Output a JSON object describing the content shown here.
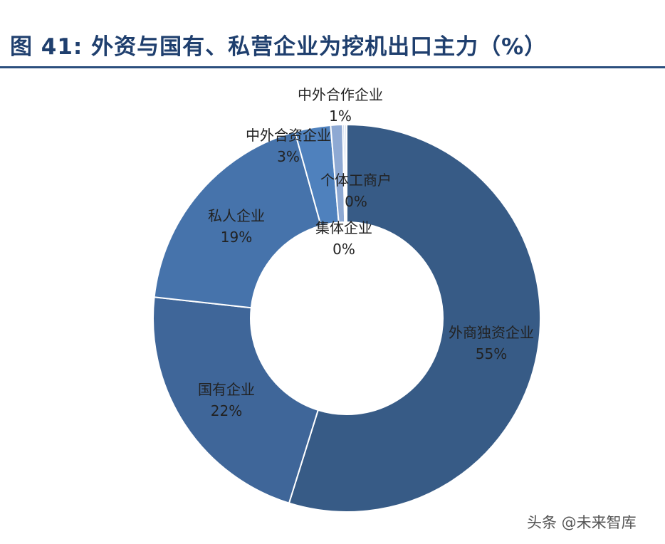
{
  "title": "图 41: 外资与国有、私营企业为挖机出口主力（%）",
  "watermark": "头条 @未来智库",
  "chart_data": {
    "type": "pie",
    "donut": true,
    "title": "图 41: 外资与国有、私营企业为挖机出口主力（%）",
    "unit": "%",
    "slices": [
      {
        "name": "外商独资企业",
        "value": 55,
        "label": "55%",
        "color": "#375b86"
      },
      {
        "name": "国有企业",
        "value": 22,
        "label": "22%",
        "color": "#3f6699"
      },
      {
        "name": "私人企业",
        "value": 19,
        "label": "19%",
        "color": "#4673ab"
      },
      {
        "name": "中外合资企业",
        "value": 3,
        "label": "3%",
        "color": "#4f81bd"
      },
      {
        "name": "中外合作企业",
        "value": 1,
        "label": "1%",
        "color": "#8ea9d3"
      },
      {
        "name": "个体工商户",
        "value": 0,
        "label": "0%",
        "color": "#b8c9e3"
      },
      {
        "name": "集体企业",
        "value": 0,
        "label": "0%",
        "color": "#d0dcee"
      }
    ]
  }
}
